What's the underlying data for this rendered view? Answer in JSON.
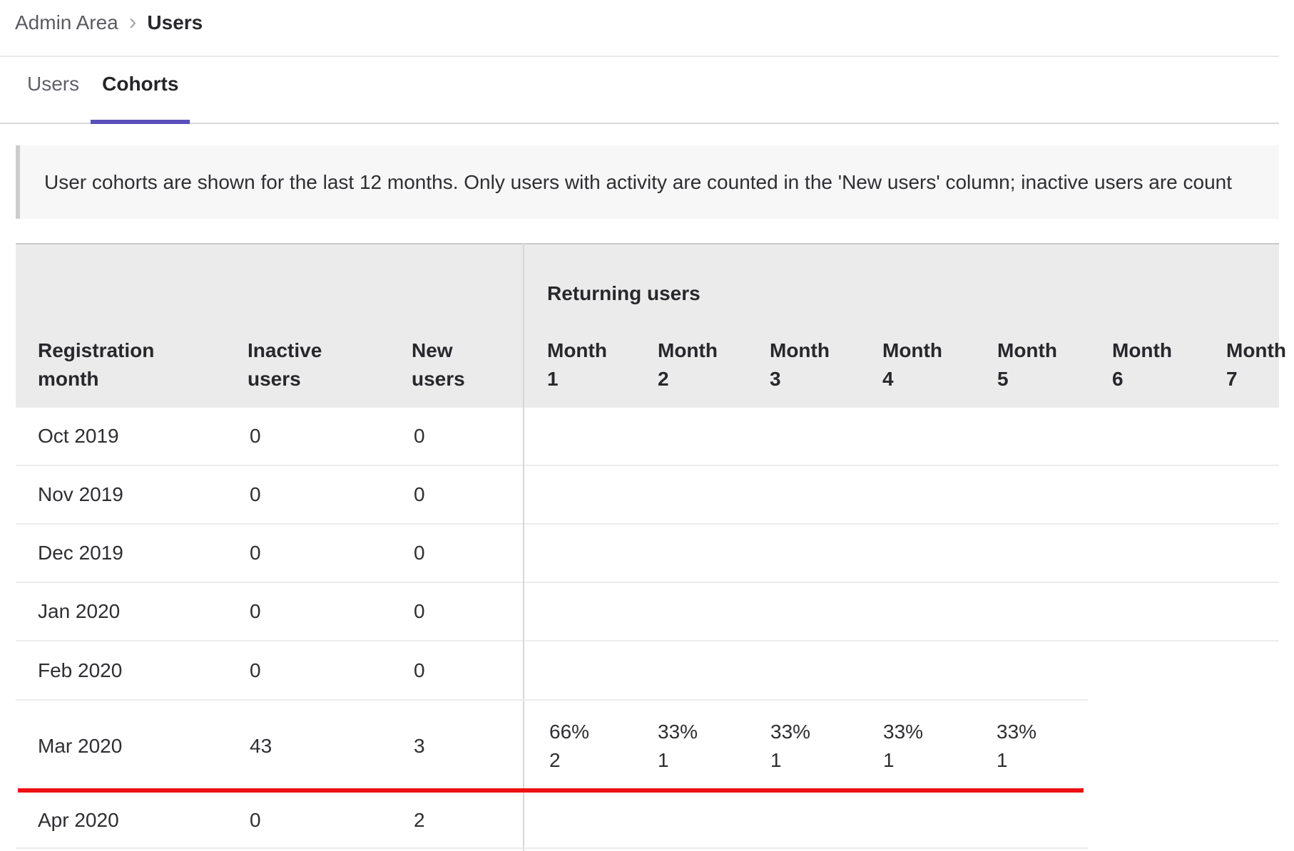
{
  "colors": {
    "accent_purple": "#5a50bb",
    "annotation_red": "#ee1111",
    "header_bg": "#ebebeb",
    "banner_bg": "#f7f7f7"
  },
  "breadcrumb": {
    "section": "Admin Area",
    "current": "Users"
  },
  "tabs": {
    "users": "Users",
    "cohorts": "Cohorts"
  },
  "banner": {
    "text": "User cohorts are shown for the last 12 months. Only users with activity are counted in the 'New users' column; inactive users are count"
  },
  "table": {
    "group_header": "Returning users",
    "columns": {
      "registration": "Registration month",
      "inactive": "Inactive users",
      "new": "New users"
    },
    "month_columns": [
      "Month 1",
      "Month 2",
      "Month 3",
      "Month 4",
      "Month 5",
      "Month 6",
      "Month 7"
    ],
    "rows": [
      {
        "month": "Oct 2019",
        "inactive": "0",
        "new": "0"
      },
      {
        "month": "Nov 2019",
        "inactive": "0",
        "new": "0"
      },
      {
        "month": "Dec 2019",
        "inactive": "0",
        "new": "0"
      },
      {
        "month": "Jan 2020",
        "inactive": "0",
        "new": "0"
      },
      {
        "month": "Feb 2020",
        "inactive": "0",
        "new": "0"
      },
      {
        "month": "Mar 2020",
        "inactive": "43",
        "new": "3",
        "returning": [
          {
            "pct": "66%",
            "count": "2"
          },
          {
            "pct": "33%",
            "count": "1"
          },
          {
            "pct": "33%",
            "count": "1"
          },
          {
            "pct": "33%",
            "count": "1"
          },
          {
            "pct": "33%",
            "count": "1"
          }
        ]
      },
      {
        "month": "Apr 2020",
        "inactive": "0",
        "new": "2"
      }
    ]
  }
}
